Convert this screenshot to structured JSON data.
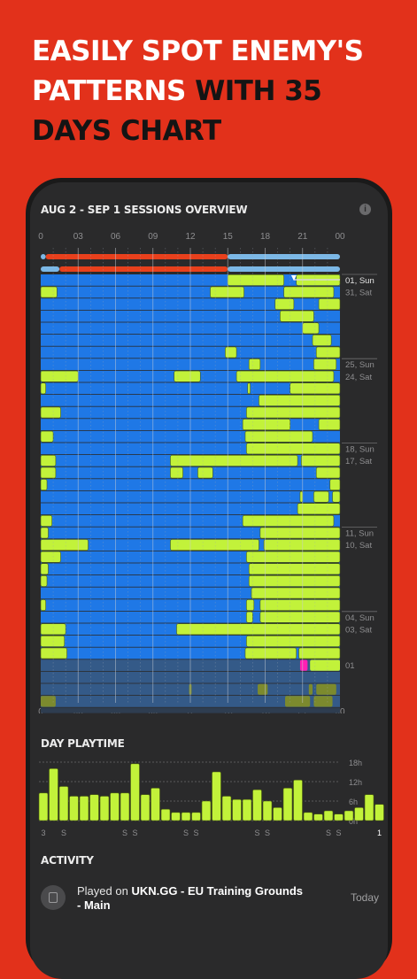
{
  "headline": {
    "white": "EASILY SPOT ENEMY'S PATTERNS",
    "dark": "WITH 35 DAYS CHART"
  },
  "sessions": {
    "title": "AUG 2 - SEP 1 SESSIONS OVERVIEW",
    "info_icon": "info-icon",
    "hour_labels": [
      "0",
      "03",
      "06",
      "09",
      "12",
      "15",
      "18",
      "21",
      "00"
    ],
    "day_labels": [
      "01, Sun",
      "31, Sat",
      "25, Sun",
      "24, Sat",
      "18, Sun",
      "17, Sat",
      "11, Sun",
      "10, Sat",
      "04, Sun",
      "03, Sat",
      "01"
    ],
    "colors": {
      "offline": "#1f78e6",
      "playing": "#c2f23a",
      "other_server": "#ff1fb4",
      "progress_red": "#e8401c",
      "progress_blue": "#7cb8e6"
    }
  },
  "playtime": {
    "title": "DAY PLAYTIME",
    "y_labels": [
      "18h",
      "12h",
      "6h",
      "0h"
    ],
    "x_labels": [
      "3",
      "S",
      "S",
      "S",
      "S",
      "S",
      "S",
      "S",
      "S",
      "S",
      "S",
      "1"
    ],
    "hours": [
      8.5,
      16,
      10.5,
      7.5,
      7.5,
      8,
      7.5,
      8.5,
      8.5,
      17.5,
      8,
      10,
      3.5,
      2.5,
      2.5,
      2.5,
      6,
      15,
      7.5,
      6.5,
      6.5,
      9.5,
      6,
      4,
      10,
      12.5,
      2.5,
      2,
      3,
      2,
      3,
      4,
      8,
      5
    ]
  },
  "activity": {
    "title": "ACTIVITY",
    "item": {
      "prefix": "Played on ",
      "server": "UKN.GG - EU Training Grounds",
      "suffix": "- Main",
      "date": "Today",
      "icon": "server-icon"
    }
  }
}
